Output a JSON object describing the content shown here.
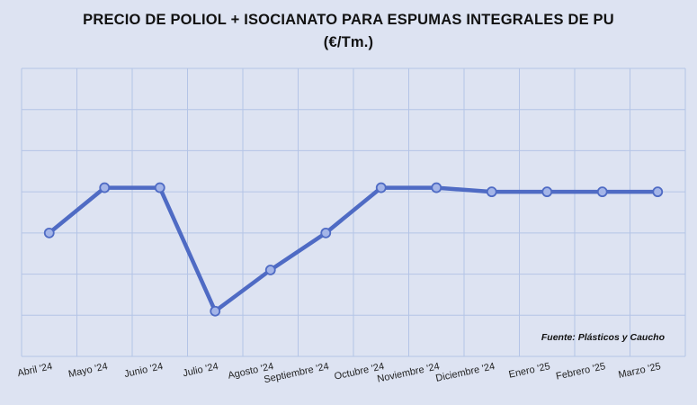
{
  "chart_data": {
    "type": "line",
    "title": "PRECIO DE POLIOL + ISOCIANATO PARA ESPUMAS INTEGRALES DE PU",
    "subtitle": "(€/Tm.)",
    "categories": [
      "Abril '24",
      "Mayo '24",
      "Junio '24",
      "Julio '24",
      "Agosto '24",
      "Septiembre '24",
      "Octubre '24",
      "Noviembre '24",
      "Diciembre '24",
      "Enero '25",
      "Febrero '25",
      "Marzo '25"
    ],
    "series": [
      {
        "values": [
          2.5,
          3.6,
          3.6,
          0.6,
          1.6,
          2.5,
          3.6,
          3.6,
          3.5,
          3.5,
          3.5,
          3.5
        ]
      }
    ],
    "ylim": [
      -0.5,
      6.5
    ],
    "grid": true,
    "source": "Fuente: Plásticos y Caucho",
    "colors": {
      "line": "#4f6bc4",
      "marker_fill": "#a4b5e8",
      "grid": "#b4c4e6",
      "background": "#dde3f2"
    }
  }
}
